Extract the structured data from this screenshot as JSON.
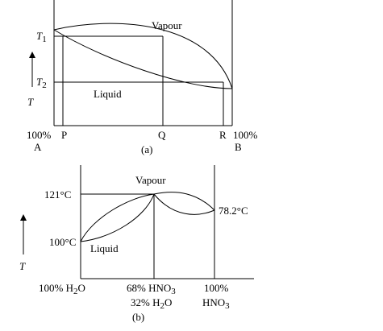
{
  "diagram_a": {
    "top_label": "Vapour",
    "bottom_label": "Liquid",
    "t1": "T",
    "t1_sub": "1",
    "t2": "T",
    "t2_sub": "2",
    "axis_var": "T",
    "left_pct": "100%",
    "left_comp": "A",
    "right_pct": "100%",
    "right_comp": "B",
    "p": "P",
    "q": "Q",
    "r": "R",
    "caption": "(a)"
  },
  "diagram_b": {
    "top_label": "Vapour",
    "bottom_label": "Liquid",
    "temp_high": "121",
    "temp_high_unit": "°C",
    "temp_low": "100",
    "temp_low_unit": "°C",
    "temp_right": "78.2",
    "temp_right_unit": "°C",
    "axis_var": "T",
    "x_left_pre": "100% H",
    "x_left_sub": "2",
    "x_left_post": "O",
    "x_mid1_pre": "68% HNO",
    "x_mid1_sub": "3",
    "x_mid2_pre": "32% H",
    "x_mid2_sub": "2",
    "x_mid2_post": "O",
    "x_right1": "100%",
    "x_right2_pre": "HNO",
    "x_right2_sub": "3",
    "caption": "(b)"
  }
}
